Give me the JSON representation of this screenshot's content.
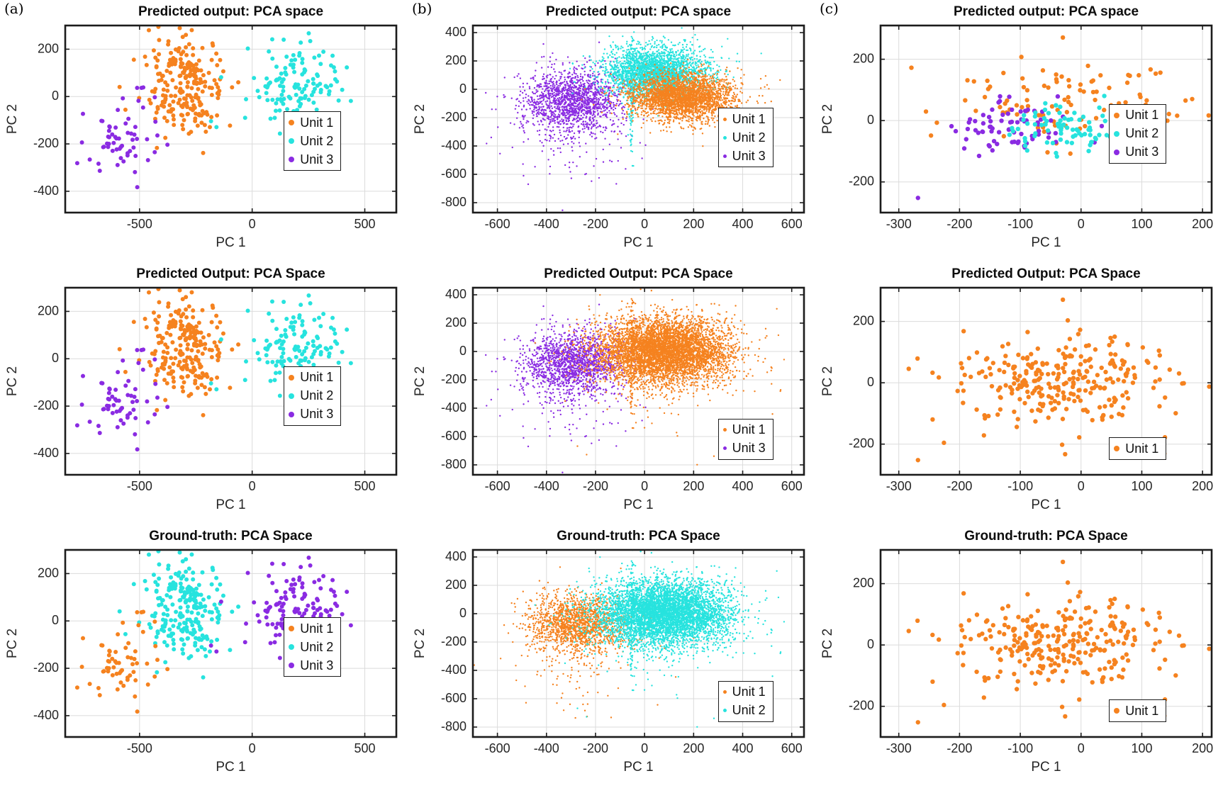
{
  "panel_labels": [
    "(a)",
    "(b)",
    "(c)"
  ],
  "colors": {
    "unit1": "#F5821F",
    "unit2": "#27E3DE",
    "unit3": "#8A2BE2"
  },
  "chart_data": [
    {
      "panel": 0,
      "row": 0,
      "type": "scatter",
      "title": "Predicted output: PCA space",
      "xlabel": "PC 1",
      "ylabel": "PC 2",
      "xlim": [
        -830,
        640
      ],
      "ylim": [
        -490,
        300
      ],
      "xticks": [
        -500,
        0,
        500
      ],
      "yticks": [
        -400,
        -200,
        0,
        200
      ],
      "grid": true,
      "marker_r": 3,
      "legend": {
        "fx": 0.66,
        "fy": 0.46,
        "items": [
          {
            "label": "Unit 1",
            "color": "#F5821F"
          },
          {
            "label": "Unit 2",
            "color": "#27E3DE"
          },
          {
            "label": "Unit 3",
            "color": "#8A2BE2"
          }
        ]
      },
      "clusters": [
        {
          "name": "unit1-main",
          "color": "#F5821F",
          "cx": -300,
          "cy": 50,
          "sx": 85,
          "sy": 100,
          "n": 230,
          "seed": 11
        },
        {
          "name": "unit2-main",
          "color": "#27E3DE",
          "cx": 190,
          "cy": 55,
          "sx": 115,
          "sy": 85,
          "n": 130,
          "seed": 12
        },
        {
          "name": "unit3-main",
          "color": "#8A2BE2",
          "cx": -600,
          "cy": -210,
          "sx": 70,
          "sy": 75,
          "n": 55,
          "seed": 13
        },
        {
          "name": "unit3-stray",
          "color": "#8A2BE2",
          "cx": -480,
          "cy": 5,
          "sx": 30,
          "sy": 30,
          "n": 6,
          "seed": 14
        }
      ]
    },
    {
      "panel": 0,
      "row": 1,
      "type": "scatter",
      "title": "Predicted Output: PCA Space",
      "xlabel": "PC 1",
      "ylabel": "PC 2",
      "xlim": [
        -830,
        640
      ],
      "ylim": [
        -490,
        300
      ],
      "xticks": [
        -500,
        0,
        500
      ],
      "yticks": [
        -400,
        -200,
        0,
        200
      ],
      "grid": true,
      "marker_r": 3,
      "legend": {
        "fx": 0.66,
        "fy": 0.42,
        "items": [
          {
            "label": "Unit 1",
            "color": "#F5821F"
          },
          {
            "label": "Unit 2",
            "color": "#27E3DE"
          },
          {
            "label": "Unit 3",
            "color": "#8A2BE2"
          }
        ]
      },
      "clusters": [
        {
          "name": "unit1-main",
          "color": "#F5821F",
          "cx": -300,
          "cy": 50,
          "sx": 85,
          "sy": 100,
          "n": 230,
          "seed": 11
        },
        {
          "name": "unit2-main",
          "color": "#27E3DE",
          "cx": 190,
          "cy": 55,
          "sx": 115,
          "sy": 85,
          "n": 130,
          "seed": 12
        },
        {
          "name": "unit3-main",
          "color": "#8A2BE2",
          "cx": -600,
          "cy": -210,
          "sx": 70,
          "sy": 75,
          "n": 55,
          "seed": 13
        },
        {
          "name": "unit3-stray",
          "color": "#8A2BE2",
          "cx": -480,
          "cy": 5,
          "sx": 30,
          "sy": 30,
          "n": 6,
          "seed": 14
        }
      ]
    },
    {
      "panel": 0,
      "row": 2,
      "type": "scatter",
      "title": "Ground-truth: PCA Space",
      "xlabel": "PC 1",
      "ylabel": "PC 2",
      "xlim": [
        -830,
        640
      ],
      "ylim": [
        -490,
        300
      ],
      "xticks": [
        -500,
        0,
        500
      ],
      "yticks": [
        -400,
        -200,
        0,
        200
      ],
      "grid": true,
      "marker_r": 3,
      "legend": {
        "fx": 0.66,
        "fy": 0.36,
        "items": [
          {
            "label": "Unit 1",
            "color": "#F5821F"
          },
          {
            "label": "Unit 2",
            "color": "#27E3DE"
          },
          {
            "label": "Unit 3",
            "color": "#8A2BE2"
          }
        ]
      },
      "clusters": [
        {
          "name": "unit2-main",
          "color": "#27E3DE",
          "cx": -300,
          "cy": 50,
          "sx": 85,
          "sy": 100,
          "n": 230,
          "seed": 11
        },
        {
          "name": "unit3-main",
          "color": "#8A2BE2",
          "cx": 190,
          "cy": 55,
          "sx": 115,
          "sy": 85,
          "n": 130,
          "seed": 12
        },
        {
          "name": "unit1-main",
          "color": "#F5821F",
          "cx": -600,
          "cy": -210,
          "sx": 70,
          "sy": 75,
          "n": 55,
          "seed": 13
        },
        {
          "name": "unit1-stray",
          "color": "#F5821F",
          "cx": -480,
          "cy": 5,
          "sx": 30,
          "sy": 30,
          "n": 6,
          "seed": 14
        }
      ]
    },
    {
      "panel": 1,
      "row": 0,
      "type": "scatter",
      "title": "Predicted output: PCA space",
      "xlabel": "PC 1",
      "ylabel": "PC 2",
      "xlim": [
        -700,
        650
      ],
      "ylim": [
        -870,
        450
      ],
      "xticks": [
        -600,
        -400,
        -200,
        0,
        200,
        400,
        600
      ],
      "yticks": [
        -800,
        -600,
        -400,
        -200,
        0,
        200,
        400
      ],
      "grid": true,
      "marker_r": 1.2,
      "legend": {
        "fx": 0.74,
        "fy": 0.44,
        "items": [
          {
            "label": "Unit 1",
            "color": "#F5821F"
          },
          {
            "label": "Unit 2",
            "color": "#27E3DE"
          },
          {
            "label": "Unit 3",
            "color": "#8A2BE2"
          }
        ]
      },
      "clusters": [
        {
          "name": "unit3-tail",
          "color": "#8A2BE2",
          "cx": -280,
          "cy": -320,
          "sx": 150,
          "sy": 190,
          "n": 130,
          "seed": 22
        },
        {
          "name": "unit3-main",
          "color": "#8A2BE2",
          "cx": -290,
          "cy": -70,
          "sx": 100,
          "sy": 110,
          "n": 1500,
          "seed": 21
        },
        {
          "name": "unit2-streak",
          "color": "#27E3DE",
          "cx": -52,
          "cy": -80,
          "sx": 6,
          "sy": 300,
          "n": 110,
          "seed": 30
        },
        {
          "name": "unit2-main",
          "color": "#27E3DE",
          "cx": 40,
          "cy": 115,
          "sx": 105,
          "sy": 90,
          "n": 2600,
          "seed": 23
        },
        {
          "name": "unit1-tail",
          "color": "#F5821F",
          "cx": 230,
          "cy": -80,
          "sx": 150,
          "sy": 110,
          "n": 160,
          "seed": 25
        },
        {
          "name": "unit1-main",
          "color": "#F5821F",
          "cx": 155,
          "cy": -55,
          "sx": 105,
          "sy": 80,
          "n": 2600,
          "seed": 24
        }
      ]
    },
    {
      "panel": 1,
      "row": 1,
      "type": "scatter",
      "title": "Predicted Output: PCA Space",
      "xlabel": "PC 1",
      "ylabel": "PC 2",
      "xlim": [
        -700,
        650
      ],
      "ylim": [
        -870,
        450
      ],
      "xticks": [
        -600,
        -400,
        -200,
        0,
        200,
        400,
        600
      ],
      "yticks": [
        -800,
        -600,
        -400,
        -200,
        0,
        200,
        400
      ],
      "grid": true,
      "marker_r": 1.2,
      "legend": {
        "fx": 0.74,
        "fy": 0.7,
        "items": [
          {
            "label": "Unit 1",
            "color": "#F5821F"
          },
          {
            "label": "Unit 3",
            "color": "#8A2BE2"
          }
        ]
      },
      "clusters": [
        {
          "name": "unit3-tail",
          "color": "#8A2BE2",
          "cx": -280,
          "cy": -320,
          "sx": 150,
          "sy": 190,
          "n": 130,
          "seed": 22
        },
        {
          "name": "unit3-main",
          "color": "#8A2BE2",
          "cx": -290,
          "cy": -70,
          "sx": 100,
          "sy": 110,
          "n": 1500,
          "seed": 21
        },
        {
          "name": "unit1-streak",
          "color": "#F5821F",
          "cx": -52,
          "cy": -80,
          "sx": 6,
          "sy": 300,
          "n": 110,
          "seed": 30
        },
        {
          "name": "unit1-spread",
          "color": "#F5821F",
          "cx": 60,
          "cy": -250,
          "sx": 200,
          "sy": 200,
          "n": 90,
          "seed": 27
        },
        {
          "name": "unit1-main",
          "color": "#F5821F",
          "cx": 80,
          "cy": 5,
          "sx": 135,
          "sy": 115,
          "n": 5200,
          "seed": 26
        }
      ]
    },
    {
      "panel": 1,
      "row": 2,
      "type": "scatter",
      "title": "Ground-truth: PCA Space",
      "xlabel": "PC 1",
      "ylabel": "PC 2",
      "xlim": [
        -700,
        650
      ],
      "ylim": [
        -870,
        450
      ],
      "xticks": [
        -600,
        -400,
        -200,
        0,
        200,
        400,
        600
      ],
      "yticks": [
        -800,
        -600,
        -400,
        -200,
        0,
        200,
        400
      ],
      "grid": true,
      "marker_r": 1.2,
      "legend": {
        "fx": 0.74,
        "fy": 0.7,
        "items": [
          {
            "label": "Unit 1",
            "color": "#F5821F"
          },
          {
            "label": "Unit 2",
            "color": "#27E3DE"
          }
        ]
      },
      "clusters": [
        {
          "name": "unit1-tail",
          "color": "#F5821F",
          "cx": -270,
          "cy": -320,
          "sx": 150,
          "sy": 185,
          "n": 120,
          "seed": 29
        },
        {
          "name": "unit1-main",
          "color": "#F5821F",
          "cx": -275,
          "cy": -70,
          "sx": 95,
          "sy": 105,
          "n": 1500,
          "seed": 28
        },
        {
          "name": "unit2-streak",
          "color": "#27E3DE",
          "cx": -52,
          "cy": -80,
          "sx": 6,
          "sy": 300,
          "n": 110,
          "seed": 30
        },
        {
          "name": "unit2-spread",
          "color": "#27E3DE",
          "cx": 60,
          "cy": -250,
          "sx": 200,
          "sy": 200,
          "n": 90,
          "seed": 27
        },
        {
          "name": "unit2-main",
          "color": "#27E3DE",
          "cx": 80,
          "cy": 5,
          "sx": 135,
          "sy": 115,
          "n": 5200,
          "seed": 26
        }
      ]
    },
    {
      "panel": 2,
      "row": 0,
      "type": "scatter",
      "title": "Predicted output: PCA space",
      "xlabel": "PC 1",
      "ylabel": "PC 2",
      "xlim": [
        -330,
        215
      ],
      "ylim": [
        -300,
        310
      ],
      "xticks": [
        -300,
        -200,
        -100,
        0,
        100,
        200
      ],
      "yticks": [
        -200,
        0,
        200
      ],
      "grid": true,
      "marker_r": 3.2,
      "legend": {
        "fx": 0.69,
        "fy": 0.42,
        "items": [
          {
            "label": "Unit 1",
            "color": "#F5821F"
          },
          {
            "label": "Unit 2",
            "color": "#27E3DE"
          },
          {
            "label": "Unit 3",
            "color": "#8A2BE2"
          }
        ]
      },
      "clusters": [
        {
          "name": "unit1-main",
          "color": "#F5821F",
          "cx": -20,
          "cy": 65,
          "sx": 100,
          "sy": 62,
          "n": 105,
          "seed": 31
        },
        {
          "name": "unit3-main",
          "color": "#8A2BE2",
          "cx": -120,
          "cy": -25,
          "sx": 52,
          "sy": 45,
          "n": 75,
          "seed": 33
        },
        {
          "name": "unit2-main",
          "color": "#27E3DE",
          "cx": -12,
          "cy": -28,
          "sx": 55,
          "sy": 40,
          "n": 85,
          "seed": 32
        },
        {
          "name": "unit3-outlier",
          "color": "#8A2BE2",
          "cx": -268,
          "cy": -252,
          "sx": 1,
          "sy": 1,
          "n": 1,
          "seed": 34
        },
        {
          "name": "unit1-top",
          "color": "#F5821F",
          "cx": -28,
          "cy": 272,
          "sx": 1,
          "sy": 1,
          "n": 1,
          "seed": 35
        }
      ]
    },
    {
      "panel": 2,
      "row": 1,
      "type": "scatter",
      "title": "Predicted Output: PCA Space",
      "xlabel": "PC 1",
      "ylabel": "PC 2",
      "xlim": [
        -330,
        215
      ],
      "ylim": [
        -300,
        310
      ],
      "xticks": [
        -300,
        -200,
        -100,
        0,
        100,
        200
      ],
      "yticks": [
        -200,
        0,
        200
      ],
      "grid": true,
      "marker_r": 3.2,
      "legend": {
        "fx": 0.69,
        "fy": 0.8,
        "items": [
          {
            "label": "Unit 1",
            "color": "#F5821F"
          }
        ]
      },
      "clusters": [
        {
          "name": "unit1-main",
          "color": "#F5821F",
          "cx": -35,
          "cy": 5,
          "sx": 100,
          "sy": 75,
          "n": 285,
          "seed": 36
        },
        {
          "name": "unit1-outlier",
          "color": "#F5821F",
          "cx": -268,
          "cy": -252,
          "sx": 1,
          "sy": 1,
          "n": 1,
          "seed": 34
        },
        {
          "name": "unit1-top",
          "color": "#F5821F",
          "cx": -28,
          "cy": 272,
          "sx": 1,
          "sy": 1,
          "n": 1,
          "seed": 35
        }
      ]
    },
    {
      "panel": 2,
      "row": 2,
      "type": "scatter",
      "title": "Ground-truth: PCA Space",
      "xlabel": "PC 1",
      "ylabel": "PC 2",
      "xlim": [
        -330,
        215
      ],
      "ylim": [
        -300,
        310
      ],
      "xticks": [
        -300,
        -200,
        -100,
        0,
        100,
        200
      ],
      "yticks": [
        -200,
        0,
        200
      ],
      "grid": true,
      "marker_r": 3.2,
      "legend": {
        "fx": 0.69,
        "fy": 0.8,
        "items": [
          {
            "label": "Unit 1",
            "color": "#F5821F"
          }
        ]
      },
      "clusters": [
        {
          "name": "unit1-main",
          "color": "#F5821F",
          "cx": -35,
          "cy": 5,
          "sx": 100,
          "sy": 75,
          "n": 285,
          "seed": 36
        },
        {
          "name": "unit1-outlier",
          "color": "#F5821F",
          "cx": -268,
          "cy": -252,
          "sx": 1,
          "sy": 1,
          "n": 1,
          "seed": 34
        },
        {
          "name": "unit1-top",
          "color": "#F5821F",
          "cx": -28,
          "cy": 272,
          "sx": 1,
          "sy": 1,
          "n": 1,
          "seed": 35
        }
      ]
    }
  ]
}
